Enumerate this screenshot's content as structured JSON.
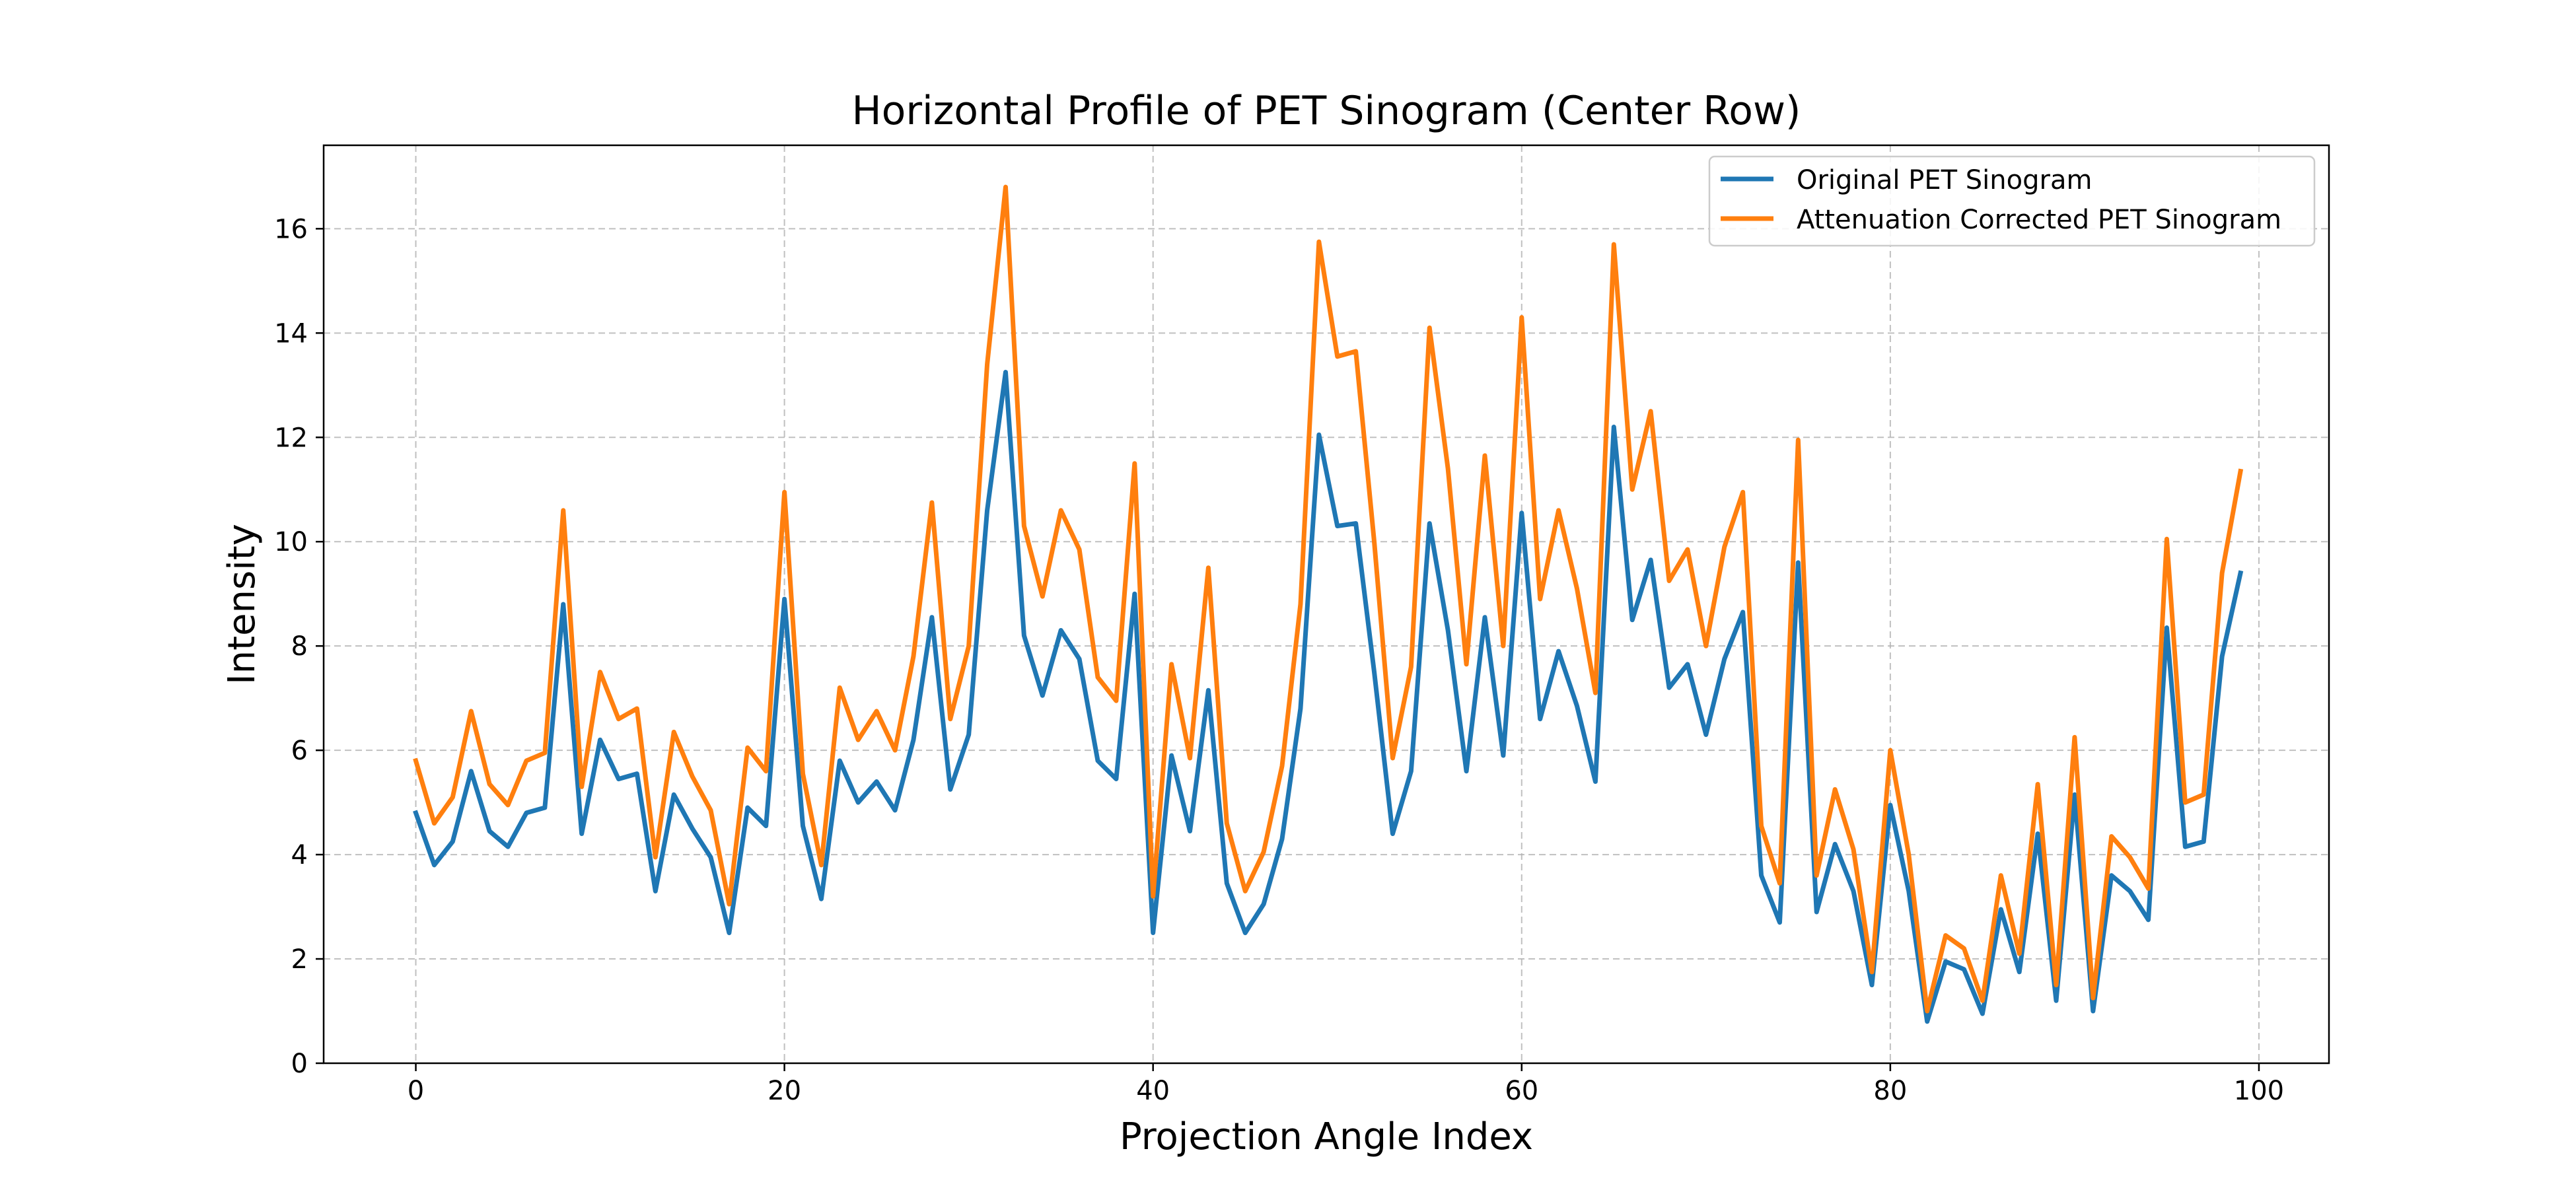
{
  "chart_data": {
    "type": "line",
    "title": "Horizontal Profile of PET Sinogram (Center Row)",
    "xlabel": "Projection Angle Index",
    "ylabel": "Intensity",
    "xlim": [
      -5,
      103.8
    ],
    "ylim": [
      0,
      17.6
    ],
    "xticks": [
      0,
      20,
      40,
      60,
      80,
      100
    ],
    "yticks": [
      0,
      2,
      4,
      6,
      8,
      10,
      12,
      14,
      16
    ],
    "grid": true,
    "legend_position": "upper-right",
    "series": [
      {
        "name": "Original PET Sinogram",
        "color": "#1f77b4",
        "values": [
          4.8,
          3.8,
          4.25,
          5.6,
          4.45,
          4.15,
          4.8,
          4.9,
          8.8,
          4.4,
          6.2,
          5.45,
          5.55,
          3.3,
          5.15,
          4.5,
          3.95,
          2.5,
          4.9,
          4.55,
          8.9,
          4.55,
          3.15,
          5.8,
          5.0,
          5.4,
          4.85,
          6.2,
          8.55,
          5.25,
          6.3,
          10.6,
          13.25,
          8.2,
          7.05,
          8.3,
          7.75,
          5.8,
          5.45,
          9.0,
          2.5,
          5.9,
          4.45,
          7.15,
          3.45,
          2.5,
          3.05,
          4.3,
          6.8,
          12.05,
          10.3,
          10.35,
          7.5,
          4.4,
          5.6,
          10.35,
          8.3,
          5.6,
          8.55,
          5.9,
          10.55,
          6.6,
          7.9,
          6.85,
          5.4,
          12.2,
          8.5,
          9.65,
          7.2,
          7.65,
          6.3,
          7.75,
          8.65,
          3.6,
          2.7,
          9.6,
          2.9,
          4.2,
          3.3,
          1.5,
          4.95,
          3.3,
          0.8,
          1.95,
          1.8,
          0.95,
          2.95,
          1.75,
          4.4,
          1.2,
          5.15,
          1.0,
          3.6,
          3.3,
          2.75,
          8.35,
          4.15,
          4.25,
          7.8,
          9.4
        ]
      },
      {
        "name": "Attenuation Corrected PET Sinogram",
        "color": "#ff7f0e",
        "values": [
          5.8,
          4.6,
          5.1,
          6.75,
          5.35,
          4.95,
          5.8,
          5.95,
          10.6,
          5.3,
          7.5,
          6.6,
          6.8,
          3.95,
          6.35,
          5.5,
          4.85,
          3.05,
          6.05,
          5.6,
          10.95,
          5.55,
          3.8,
          7.2,
          6.2,
          6.75,
          6.0,
          7.8,
          10.75,
          6.6,
          8.0,
          13.4,
          16.8,
          10.3,
          8.95,
          10.6,
          9.85,
          7.4,
          6.95,
          11.5,
          3.2,
          7.65,
          5.85,
          9.5,
          4.6,
          3.3,
          4.05,
          5.7,
          8.8,
          15.75,
          13.55,
          13.65,
          10.0,
          5.85,
          7.6,
          14.1,
          11.4,
          7.65,
          11.65,
          8.0,
          14.3,
          8.9,
          10.6,
          9.1,
          7.1,
          15.7,
          11.0,
          12.5,
          9.25,
          9.85,
          8.0,
          9.9,
          10.95,
          4.55,
          3.45,
          11.95,
          3.6,
          5.25,
          4.1,
          1.75,
          6.0,
          4.0,
          1.0,
          2.45,
          2.2,
          1.2,
          3.6,
          2.1,
          5.35,
          1.5,
          6.25,
          1.25,
          4.35,
          3.95,
          3.35,
          10.05,
          5.0,
          5.15,
          9.4,
          11.35
        ]
      }
    ]
  }
}
